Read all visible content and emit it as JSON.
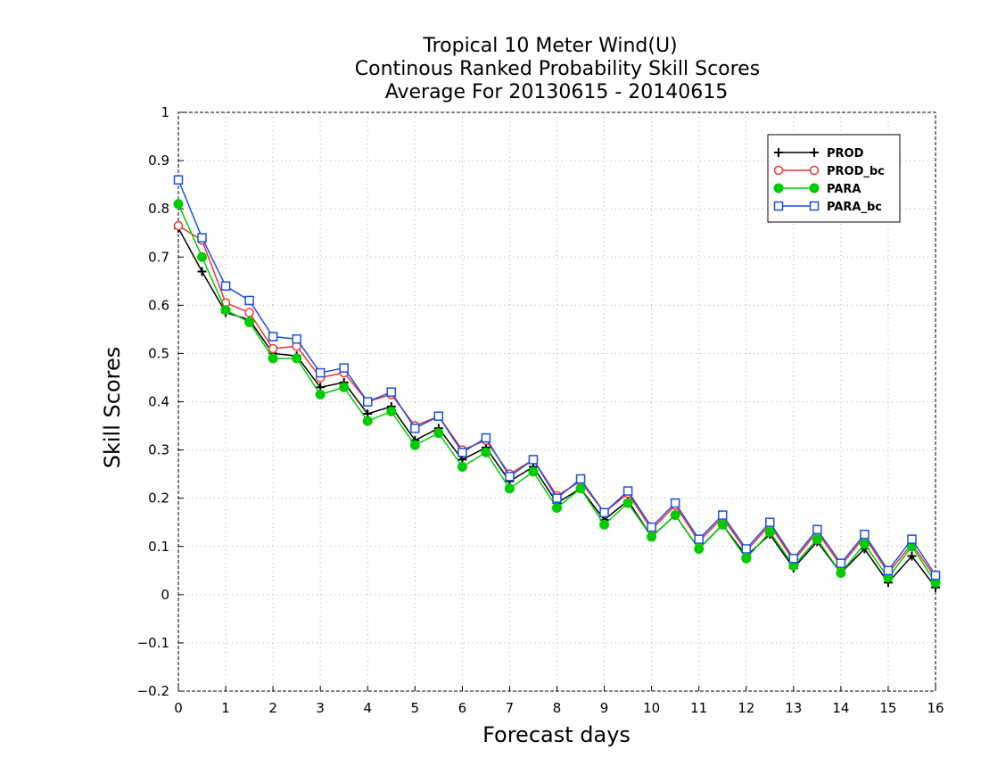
{
  "chart_data": {
    "type": "line",
    "title": [
      "Tropical 10 Meter Wind(U)",
      "Continous Ranked Probability Skill Scores",
      "Average For 20130615 - 20140615"
    ],
    "xlabel": "Forecast days",
    "ylabel": "Skill Scores",
    "xlim": [
      0,
      16
    ],
    "ylim": [
      -0.2,
      1
    ],
    "xticks": [
      0,
      1,
      2,
      3,
      4,
      5,
      6,
      7,
      8,
      9,
      10,
      11,
      12,
      13,
      14,
      15,
      16
    ],
    "xtick_labels": [
      "0",
      "1",
      "2",
      "3",
      "4",
      "5",
      "6",
      "7",
      "8",
      "9",
      "10",
      "11",
      "12",
      "13",
      "14",
      "15",
      "16"
    ],
    "yticks": [
      -0.2,
      -0.1,
      0,
      0.1,
      0.2,
      0.3,
      0.4,
      0.5,
      0.6,
      0.7,
      0.8,
      0.9,
      1
    ],
    "ytick_labels": [
      "−0.2",
      "−0.1",
      "0",
      "0.1",
      "0.2",
      "0.3",
      "0.4",
      "0.5",
      "0.6",
      "0.7",
      "0.8",
      "0.9",
      "1"
    ],
    "grid": true,
    "legend_position": "top-right",
    "x": [
      0,
      0.5,
      1,
      1.5,
      2,
      2.5,
      3,
      3.5,
      4,
      4.5,
      5,
      5.5,
      6,
      6.5,
      7,
      7.5,
      8,
      8.5,
      9,
      9.5,
      10,
      10.5,
      11,
      11.5,
      12,
      12.5,
      13,
      13.5,
      14,
      14.5,
      15,
      15.5,
      16
    ],
    "series": [
      {
        "name": "PROD",
        "color": "#000000",
        "marker": "plus",
        "values": [
          0.76,
          0.67,
          0.585,
          0.57,
          0.5,
          0.495,
          0.43,
          0.44,
          0.375,
          0.39,
          0.32,
          0.345,
          0.28,
          0.305,
          0.235,
          0.265,
          0.19,
          0.22,
          0.155,
          0.195,
          0.12,
          0.165,
          0.095,
          0.145,
          0.08,
          0.125,
          0.055,
          0.11,
          0.045,
          0.095,
          0.025,
          0.08,
          0.015
        ]
      },
      {
        "name": "PROD_bc",
        "color": "#ee3333",
        "marker": "circle",
        "values": [
          0.765,
          0.735,
          0.605,
          0.585,
          0.51,
          0.515,
          0.45,
          0.46,
          0.4,
          0.415,
          0.35,
          0.37,
          0.3,
          0.32,
          0.25,
          0.28,
          0.205,
          0.235,
          0.17,
          0.21,
          0.135,
          0.185,
          0.11,
          0.16,
          0.09,
          0.145,
          0.07,
          0.13,
          0.06,
          0.12,
          0.045,
          0.105,
          0.035
        ]
      },
      {
        "name": "PARA",
        "color": "#00cc00",
        "marker": "dot",
        "values": [
          0.81,
          0.7,
          0.59,
          0.565,
          0.49,
          0.49,
          0.415,
          0.43,
          0.36,
          0.38,
          0.31,
          0.335,
          0.265,
          0.295,
          0.22,
          0.255,
          0.18,
          0.22,
          0.145,
          0.19,
          0.12,
          0.165,
          0.095,
          0.145,
          0.075,
          0.13,
          0.06,
          0.115,
          0.045,
          0.105,
          0.035,
          0.1,
          0.025
        ]
      },
      {
        "name": "PARA_bc",
        "color": "#1e4fe0",
        "marker": "square",
        "values": [
          0.86,
          0.74,
          0.64,
          0.61,
          0.535,
          0.53,
          0.46,
          0.47,
          0.4,
          0.42,
          0.345,
          0.37,
          0.295,
          0.325,
          0.245,
          0.28,
          0.2,
          0.24,
          0.17,
          0.215,
          0.14,
          0.19,
          0.115,
          0.165,
          0.095,
          0.15,
          0.075,
          0.135,
          0.065,
          0.125,
          0.05,
          0.115,
          0.04
        ]
      }
    ]
  }
}
